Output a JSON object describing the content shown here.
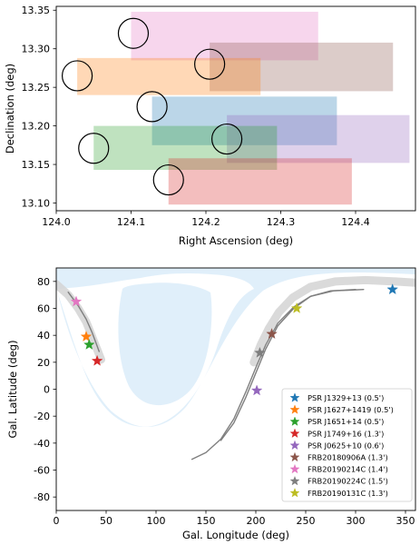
{
  "chart_data": [
    {
      "type": "scatter",
      "xlabel": "Right Ascension (deg)",
      "ylabel": "Declination (deg)",
      "xlim": [
        124.0,
        124.48
      ],
      "ylim": [
        13.09,
        13.355
      ],
      "xticks": [
        "124.0",
        "124.1",
        "124.2",
        "124.3",
        "124.4"
      ],
      "yticks": [
        "13.10",
        "13.15",
        "13.20",
        "13.25",
        "13.30",
        "13.35"
      ],
      "grid": false,
      "rects": [
        {
          "x0": 124.1,
          "x1": 124.35,
          "y0": 13.285,
          "y1": 13.348,
          "color": "#e377c2"
        },
        {
          "x0": 124.205,
          "x1": 124.45,
          "y0": 13.245,
          "y1": 13.308,
          "color": "#8c564b"
        },
        {
          "x0": 124.028,
          "x1": 124.273,
          "y0": 13.24,
          "y1": 13.288,
          "color": "#ff7f0e"
        },
        {
          "x0": 124.128,
          "x1": 124.375,
          "y0": 13.175,
          "y1": 13.238,
          "color": "#1f77b4"
        },
        {
          "x0": 124.228,
          "x1": 124.472,
          "y0": 13.152,
          "y1": 13.214,
          "color": "#9467bd"
        },
        {
          "x0": 124.05,
          "x1": 124.295,
          "y0": 13.143,
          "y1": 13.2,
          "color": "#2ca02c"
        },
        {
          "x0": 124.15,
          "x1": 124.395,
          "y0": 13.098,
          "y1": 13.158,
          "color": "#d62728"
        }
      ],
      "circles": [
        {
          "x": 124.103,
          "y": 13.32,
          "r": 0.02
        },
        {
          "x": 124.028,
          "y": 13.265,
          "r": 0.02
        },
        {
          "x": 124.205,
          "y": 13.28,
          "r": 0.02
        },
        {
          "x": 124.128,
          "y": 13.225,
          "r": 0.02
        },
        {
          "x": 124.05,
          "y": 13.171,
          "r": 0.02
        },
        {
          "x": 124.228,
          "y": 13.183,
          "r": 0.02
        },
        {
          "x": 124.15,
          "y": 13.13,
          "r": 0.02
        }
      ]
    },
    {
      "type": "scatter",
      "xlabel": "Gal. Longitude (deg)",
      "ylabel": "Gal. Latitude (deg)",
      "xlim": [
        0,
        360
      ],
      "ylim": [
        -90,
        90
      ],
      "xticks": [
        "0",
        "50",
        "100",
        "150",
        "200",
        "250",
        "300",
        "350"
      ],
      "yticks": [
        "-80",
        "-60",
        "-40",
        "-20",
        "0",
        "20",
        "40",
        "60",
        "80"
      ],
      "grid": false,
      "legend_position": "lower-right",
      "points": [
        {
          "name": "PSR J1329+13 (0.5')",
          "l": 337,
          "b": 74,
          "color": "#1f77b4"
        },
        {
          "name": "PSR J1627+1419 (0.5')",
          "l": 30,
          "b": 39,
          "color": "#ff7f0e"
        },
        {
          "name": "PSR J1651+14 (0.5')",
          "l": 33,
          "b": 33,
          "color": "#2ca02c"
        },
        {
          "name": "PSR J1749+16 (1.3')",
          "l": 41,
          "b": 21,
          "color": "#d62728"
        },
        {
          "name": "PSR J0625+10 (0.6')",
          "l": 201,
          "b": -1,
          "color": "#9467bd"
        },
        {
          "name": "FRB20180906A (1.3')",
          "l": 216,
          "b": 41,
          "color": "#8c564b"
        },
        {
          "name": "FRB20190214C (1.4')",
          "l": 20,
          "b": 65,
          "color": "#e377c2"
        },
        {
          "name": "FRB20190224C (1.5')",
          "l": 204,
          "b": 27,
          "color": "#7f7f7f"
        },
        {
          "name": "FRB20190131C (1.3')",
          "l": 241,
          "b": 60,
          "color": "#bcbd22"
        }
      ],
      "tracks": [
        {
          "color": "#7f7f7f",
          "points": [
            [
              136,
              -52
            ],
            [
              150,
              -47
            ],
            [
              165,
              -37
            ],
            [
              178,
              -22
            ],
            [
              190,
              -2
            ],
            [
              200,
              16
            ],
            [
              210,
              33
            ],
            [
              222,
              49
            ],
            [
              238,
              61
            ],
            [
              255,
              69
            ],
            [
              275,
              73
            ],
            [
              300,
              74
            ]
          ]
        },
        {
          "color": "#7f7f7f",
          "points": [
            [
              165,
              -38
            ],
            [
              178,
              -25
            ],
            [
              190,
              -6
            ],
            [
              200,
              12
            ],
            [
              210,
              30
            ],
            [
              222,
              47
            ],
            [
              238,
              60
            ],
            [
              255,
              69
            ],
            [
              278,
              73
            ],
            [
              308,
              74
            ]
          ]
        },
        {
          "color": "#7f7f7f",
          "points": [
            [
              12,
              72
            ],
            [
              22,
              62
            ],
            [
              30,
              52
            ],
            [
              36,
              42
            ],
            [
              43,
              28
            ]
          ]
        }
      ],
      "bands": [
        {
          "color": "#d3d3d3",
          "points": [
            [
              0,
              78
            ],
            [
              12,
              70
            ],
            [
              22,
              60
            ],
            [
              30,
              50
            ],
            [
              37,
              37
            ],
            [
              45,
              22
            ]
          ]
        },
        {
          "color": "#d3d3d3",
          "points": [
            [
              198,
              20
            ],
            [
              205,
              33
            ],
            [
              213,
              45
            ],
            [
              223,
              57
            ],
            [
              237,
              68
            ],
            [
              255,
              76
            ],
            [
              280,
              80
            ],
            [
              310,
              81
            ],
            [
              340,
              80
            ],
            [
              360,
              79
            ]
          ]
        }
      ]
    }
  ]
}
